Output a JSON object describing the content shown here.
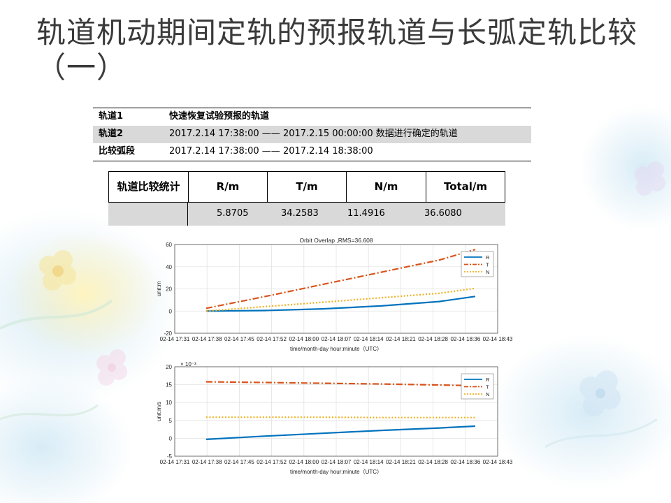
{
  "slide": {
    "title": "轨道机动期间定轨的预报轨道与长弧定轨比较（一）"
  },
  "info_table": {
    "rows": [
      {
        "key": "轨道1",
        "value": "快速恢复试验预报的轨道"
      },
      {
        "key": "轨道2",
        "value": "2017.2.14  17:38:00  —— 2017.2.15 00:00:00 数据进行确定的轨道"
      },
      {
        "key": "比较弧段",
        "value": "2017.2.14  17:38:00  —— 2017.2.14  18:38:00"
      }
    ]
  },
  "stats_table": {
    "headers": [
      "轨道比较统计",
      "R/m",
      "T/m",
      "N/m",
      "Total/m"
    ],
    "values": [
      "",
      "5.8705",
      "34.2583",
      "11.4916",
      "36.6080"
    ]
  },
  "colors": {
    "R": "#0072bd",
    "T": "#d95319",
    "N": "#edb120"
  },
  "chart_data": [
    {
      "type": "line",
      "title": "Orbit Overlap ,RMS=36.608",
      "xlabel": "time/month-day hour:minute（UTC）",
      "ylabel": "unit:m",
      "y_exponent_label": "",
      "x_tick_labels": [
        "02-14 17:31",
        "02-14 17:38",
        "02-14 17:45",
        "02-14 17:52",
        "02-14 18:00",
        "02-14 18:07",
        "02-14 18:14",
        "02-14 18:21",
        "02-14 18:28",
        "02-14 18:36",
        "02-14 18:43"
      ],
      "x_range_minutes": [
        0,
        72
      ],
      "yticks": [
        -20,
        0,
        20,
        40,
        60
      ],
      "ylim": [
        -20,
        60
      ],
      "grid": true,
      "legend_position": "top-right",
      "series": [
        {
          "name": "R",
          "style": "solid",
          "x": [
            7,
            20,
            33,
            46,
            59,
            67
          ],
          "y": [
            0.0,
            0.5,
            2.0,
            4.6,
            8.6,
            13.2
          ]
        },
        {
          "name": "T",
          "style": "dashdot",
          "x": [
            7,
            20,
            33,
            46,
            59,
            67
          ],
          "y": [
            2.5,
            13.0,
            24.0,
            35.0,
            46.0,
            55.5
          ]
        },
        {
          "name": "N",
          "style": "dotted",
          "x": [
            7,
            20,
            33,
            46,
            59,
            67
          ],
          "y": [
            0.0,
            4.0,
            8.0,
            12.0,
            16.0,
            20.5
          ]
        }
      ]
    },
    {
      "type": "line",
      "title": "",
      "xlabel": "time/month-day hour:minute（UTC）",
      "ylabel": "unit:m/s",
      "y_exponent_label": "× 10⁻³",
      "x_tick_labels": [
        "02-14 17:31",
        "02-14 17:38",
        "02-14 17:45",
        "02-14 17:52",
        "02-14 18:00",
        "02-14 18:07",
        "02-14 18:14",
        "02-14 18:21",
        "02-14 18:28",
        "02-14 18:36",
        "02-14 18:43"
      ],
      "x_range_minutes": [
        0,
        72
      ],
      "yticks": [
        -5,
        0,
        5,
        10,
        15,
        20
      ],
      "ylim": [
        -5,
        20
      ],
      "grid": true,
      "legend_position": "top-right",
      "series": [
        {
          "name": "R",
          "style": "solid",
          "x": [
            7,
            20,
            33,
            46,
            59,
            67
          ],
          "y": [
            -0.3,
            0.6,
            1.4,
            2.2,
            2.9,
            3.4
          ]
        },
        {
          "name": "T",
          "style": "dashdot",
          "x": [
            7,
            20,
            33,
            46,
            59,
            67
          ],
          "y": [
            15.8,
            15.6,
            15.4,
            15.2,
            14.9,
            14.7
          ]
        },
        {
          "name": "N",
          "style": "dotted",
          "x": [
            7,
            20,
            33,
            46,
            59,
            67
          ],
          "y": [
            5.9,
            5.9,
            5.9,
            5.8,
            5.8,
            5.8
          ]
        }
      ]
    }
  ]
}
